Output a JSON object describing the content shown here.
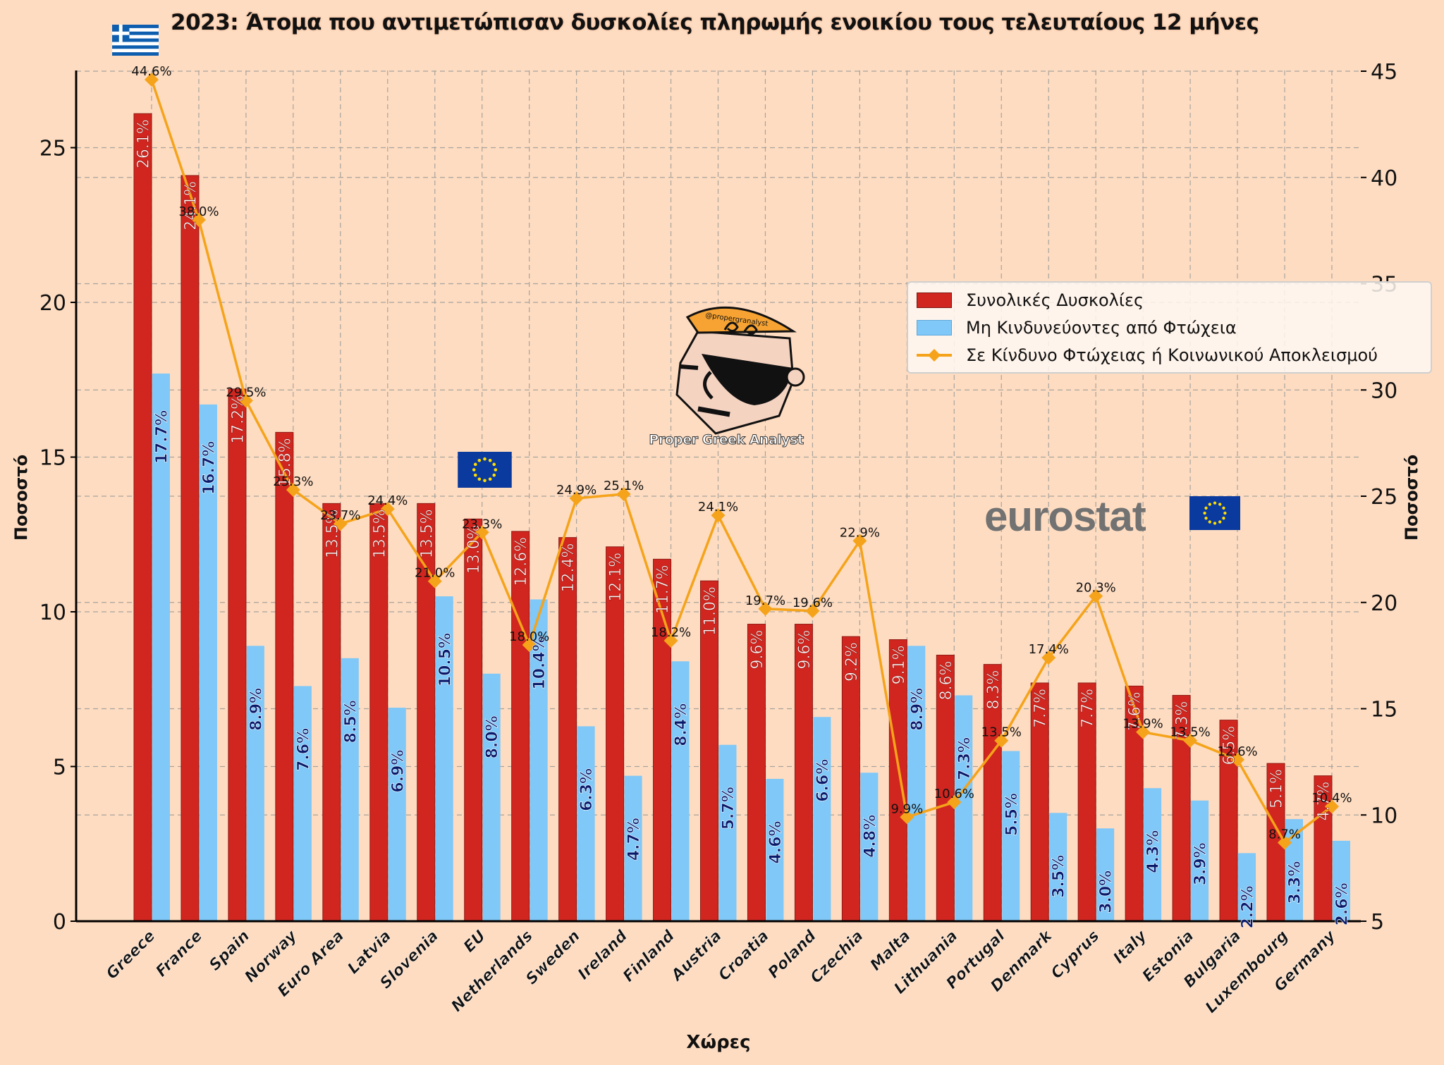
{
  "title": "2023: Άτομα που αντιμετώπισαν δυσκολίες πληρωμής ενοικίου τους τελευταίους 12 μήνες",
  "logo": {
    "handle": "@propergranalyst",
    "name": "Proper Greek Analyst"
  },
  "watermark": {
    "text": "eurostat"
  },
  "colors": {
    "background": "#fedcc1",
    "bar_total": "#d1261f",
    "bar_not_at_risk": "#7fc8f8",
    "line_at_risk": "#f5a31a",
    "grid": "#a8a39c"
  },
  "legend": {
    "placement": "right",
    "items": [
      {
        "label": "Συνολικές Δυσκολίες",
        "type": "bar",
        "color": "#d1261f"
      },
      {
        "label": "Μη Κινδυνεύοντες από Φτώχεια",
        "type": "bar",
        "color": "#7fc8f8"
      },
      {
        "label": "Σε Κίνδυνο Φτώχειας ή Κοινωνικού Αποκλεισμού",
        "type": "line",
        "color": "#f5a31a"
      }
    ]
  },
  "chart_data": {
    "type": "bar",
    "title": "2023: Άτομα που αντιμετώπισαν δυσκολίες πληρωμής ενοικίου τους τελευταίους 12 μήνες",
    "xlabel": "Χώρες",
    "ylabel": "Ποσοστό",
    "y2label": "Ποσοστό",
    "ylim": [
      0,
      27.5
    ],
    "y2lim": [
      5,
      46
    ],
    "yticks": [
      0,
      5,
      10,
      15,
      20,
      25
    ],
    "y2ticks": [
      5,
      10,
      15,
      20,
      25,
      30,
      35,
      40,
      45
    ],
    "grid": true,
    "legend_position": "center-right",
    "categories": [
      "Greece",
      "France",
      "Spain",
      "Norway",
      "Euro Area",
      "Latvia",
      "Slovenia",
      "EU",
      "Netherlands",
      "Sweden",
      "Ireland",
      "Finland",
      "Austria",
      "Croatia",
      "Poland",
      "Czechia",
      "Malta",
      "Lithuania",
      "Portugal",
      "Denmark",
      "Cyprus",
      "Italy",
      "Estonia",
      "Bulgaria",
      "Luxembourg",
      "Germany"
    ],
    "series": [
      {
        "name": "Συνολικές Δυσκολίες",
        "type": "bar",
        "axis": "left",
        "values": [
          26.1,
          24.1,
          17.2,
          15.8,
          13.5,
          13.5,
          13.5,
          13.0,
          12.6,
          12.4,
          12.1,
          11.7,
          11.0,
          9.6,
          9.6,
          9.2,
          9.1,
          8.6,
          8.3,
          7.7,
          7.7,
          7.6,
          7.3,
          6.5,
          5.1,
          4.7
        ]
      },
      {
        "name": "Μη Κινδυνεύοντες από Φτώχεια",
        "type": "bar",
        "axis": "left",
        "values": [
          17.7,
          16.7,
          8.9,
          7.6,
          8.5,
          6.9,
          10.5,
          8.0,
          10.4,
          6.3,
          4.7,
          8.4,
          5.7,
          4.6,
          6.6,
          4.8,
          8.9,
          7.3,
          5.5,
          3.5,
          3.0,
          4.3,
          3.9,
          2.2,
          3.3,
          2.6
        ]
      },
      {
        "name": "Σε Κίνδυνο Φτώχειας ή Κοινωνικού Αποκλεισμού",
        "type": "line",
        "axis": "right",
        "values": [
          44.6,
          38.0,
          29.5,
          25.3,
          23.7,
          24.4,
          21.0,
          23.3,
          18.0,
          24.9,
          25.1,
          18.2,
          24.1,
          19.7,
          19.6,
          22.9,
          9.9,
          10.6,
          13.5,
          17.4,
          20.3,
          13.9,
          13.5,
          12.6,
          8.7,
          10.4
        ]
      }
    ]
  }
}
